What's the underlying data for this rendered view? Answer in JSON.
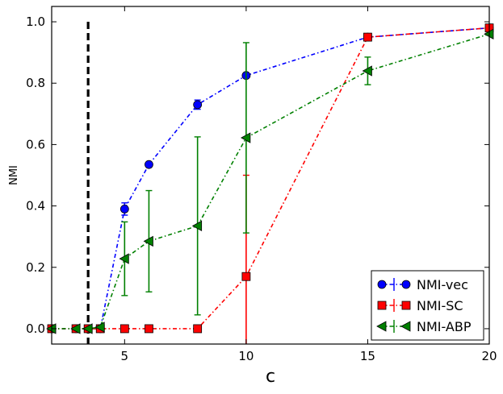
{
  "chart_data": {
    "type": "line",
    "title": "",
    "xlabel": "c",
    "ylabel": "NMI",
    "xlim": [
      2,
      20
    ],
    "ylim": [
      -0.05,
      1.05
    ],
    "xticks": [
      "5",
      "10",
      "15",
      "20"
    ],
    "yticks": [
      "0.0",
      "0.2",
      "0.4",
      "0.6",
      "0.8",
      "1.0"
    ],
    "xtick_values": [
      5,
      10,
      15,
      20
    ],
    "ytick_values": [
      0.0,
      0.2,
      0.4,
      0.6,
      0.8,
      1.0
    ],
    "vline": {
      "x": 3.5,
      "style": "dashed",
      "color": "#000000"
    },
    "legend_position": "lower-right",
    "series": [
      {
        "name": "NMI-vec",
        "color": "#0000ff",
        "marker": "circle",
        "x": [
          2,
          3,
          3.5,
          4,
          5,
          6,
          8,
          10,
          15,
          20
        ],
        "y": [
          0.0,
          0.0,
          0.0,
          0.0,
          0.39,
          0.535,
          0.73,
          0.825,
          0.95,
          0.98
        ],
        "err": [
          0,
          0,
          0,
          0,
          0.02,
          0.01,
          0.015,
          0.01,
          0.005,
          0.005
        ]
      },
      {
        "name": "NMI-SC",
        "color": "#ff0000",
        "marker": "square",
        "x": [
          2,
          3,
          3.5,
          4,
          5,
          6,
          8,
          10,
          15,
          20
        ],
        "y": [
          0.0,
          0.0,
          0.0,
          0.0,
          0.0,
          0.0,
          0.0,
          0.17,
          0.95,
          0.98
        ],
        "err": [
          0,
          0,
          0,
          0,
          0,
          0,
          0,
          0.33,
          0.005,
          0.005
        ]
      },
      {
        "name": "NMI-ABP",
        "color": "#008000",
        "marker": "triangle-left",
        "x": [
          2,
          3,
          3.5,
          4,
          5,
          6,
          8,
          10,
          15,
          20
        ],
        "y": [
          0.0,
          0.0,
          0.0,
          0.005,
          0.228,
          0.285,
          0.335,
          0.622,
          0.84,
          0.96
        ],
        "err": [
          0,
          0,
          0,
          0.005,
          0.12,
          0.165,
          0.29,
          0.31,
          0.045,
          0.01
        ]
      }
    ]
  }
}
